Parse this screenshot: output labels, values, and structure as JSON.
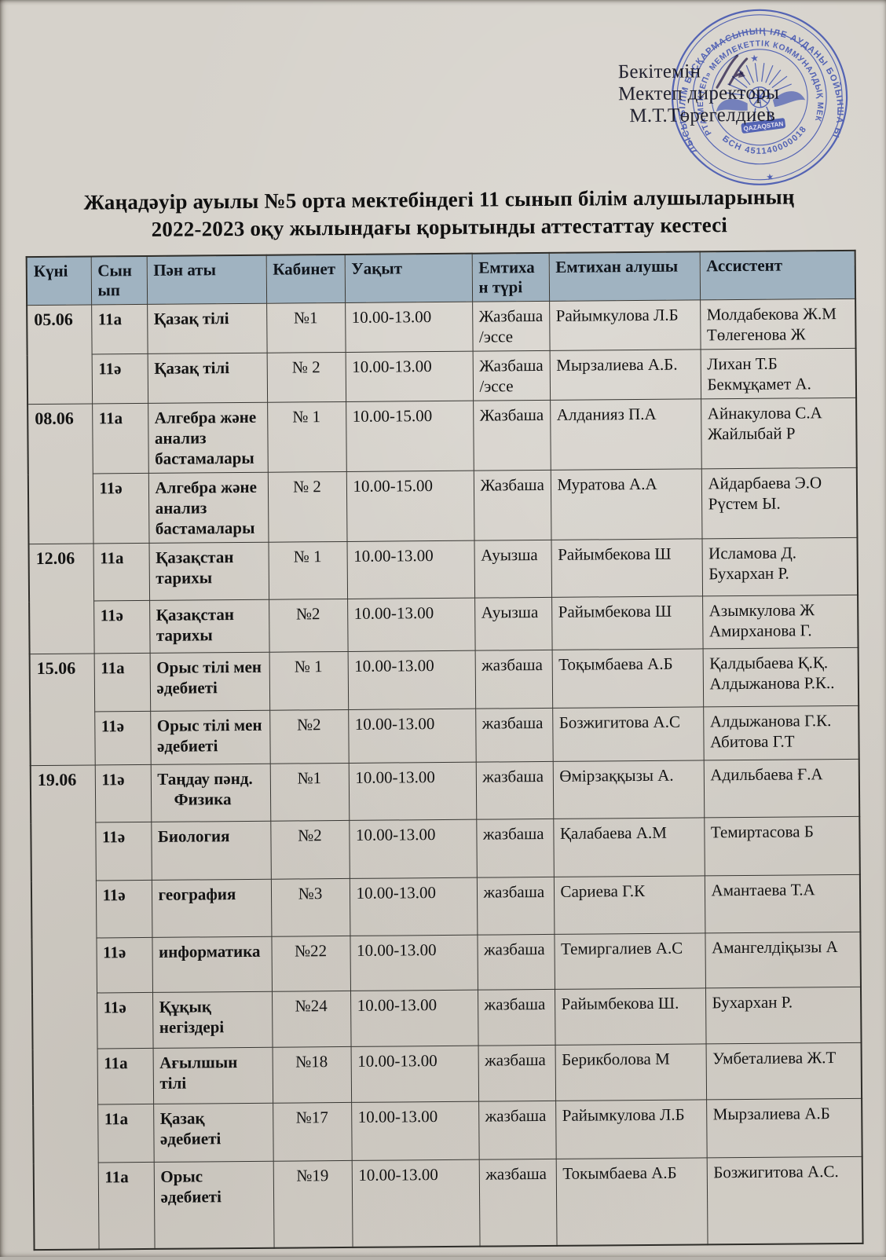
{
  "page": {
    "approval": {
      "line1": "Бекітемін",
      "line2": "Мектеп директоры",
      "line3": "М.Т.Төрегелдиев"
    },
    "title": {
      "line1": "Жаңадәуір ауылы  №5 орта мектебіндегі  11 сынып білім алушыларының",
      "line2": "2022-2023  оқу  жылындағы  қорытынды аттестаттау кестесі"
    },
    "stamp": {
      "outer_ring_text": "АЛМАТЫ ОБЛЫСЫ БІЛІМ БАСҚАРМАСЫНЫҢ ІЛЕ АУДАНЫ БОЙЫНША БІЛІМ БӨЛІМІ",
      "inner_ring_text": "«№5 ОРТА МЕКТЕП» МЕМЛЕКЕТТІК КОММУНАЛДЫҚ МЕКЕМЕСІ",
      "bsn_text": "БСН 451140000018",
      "center_text": "QAZAQSTAN"
    },
    "colors": {
      "paper": "#d6d2cb",
      "header_bg": "#a0b3c1",
      "ink": "#161616",
      "stamp_blue": "#4053b0"
    }
  },
  "table": {
    "headers": [
      "Күні",
      "Сынып",
      "Пән аты",
      "Кабинет",
      "Уақыт",
      "Емтихан түрі",
      "Емтихан алушы",
      "Ассистент"
    ],
    "rows": [
      {
        "date": "05.06",
        "date_rowspan": 2,
        "grade": "11а",
        "subject": "Қазақ тілі",
        "room": "№1",
        "time": "10.00-13.00",
        "type": "Жазбаша\n/эссе",
        "examiner": "Райымкулова Л.Б",
        "assistant": "Молдабекова Ж.М\nТөлегенова Ж"
      },
      {
        "grade": "11ә",
        "subject": "Қазақ тілі",
        "room": "№ 2",
        "time": "10.00-13.00",
        "type": "Жазбаша\n/эссе",
        "examiner": "Мырзалиева А.Б.",
        "assistant": "Лихан Т.Б\nБекмұқамет А."
      },
      {
        "date": "08.06",
        "date_rowspan": 2,
        "grade": "11а",
        "subject": "Алгебра және анализ бастамалары",
        "room": "№ 1",
        "time": "10.00-15.00",
        "type": "Жазбаша",
        "examiner": "Алданияз П.А",
        "assistant": "Айнакулова С.А\nЖайлыбай Р"
      },
      {
        "grade": "11ә",
        "subject": "Алгебра және анализ бастамалары",
        "room": "№ 2",
        "time": "10.00-15.00",
        "type": "Жазбаша",
        "examiner": "Муратова А.А",
        "assistant": "Айдарбаева Э.О\nРүстем Ы."
      },
      {
        "date": "12.06",
        "date_rowspan": 2,
        "grade": "11а",
        "subject": "Қазақстан тарихы",
        "room": "№ 1",
        "time": "10.00-13.00",
        "type": "Ауызша",
        "examiner": "Райымбекова Ш",
        "assistant": "Исламова Д.\nБухархан Р."
      },
      {
        "grade": "11ә",
        "subject": "Қазақстан тарихы",
        "room": "№2",
        "time": "10.00-13.00",
        "type": "Ауызша",
        "examiner": "Райымбекова Ш",
        "assistant": "Азымкулова Ж\nАмирханова Г."
      },
      {
        "date": "15.06",
        "date_rowspan": 2,
        "grade": "11а",
        "subject": "Орыс тілі мен әдебиеті",
        "room": "№ 1",
        "time": "10.00-13.00",
        "type": "жазбаша",
        "examiner": "Тоқымбаева А.Б",
        "assistant": "Қалдыбаева Қ.Қ.\nАлдыжанова Р.К.."
      },
      {
        "grade": "11ә",
        "subject": "Орыс тілі мен әдебиеті",
        "room": "№2",
        "time": "10.00-13.00",
        "type": "жазбаша",
        "examiner": "Бозжигитова А.С",
        "assistant": "Алдыжанова Г.К.\nАбитова Г.Т"
      },
      {
        "date": "19.06",
        "date_rowspan": 8,
        "grade": "11ә",
        "subject": "Таңдау пәнд.\n    Физика",
        "room": "№1",
        "time": "10.00-13.00",
        "type": "жазбаша",
        "examiner": "Өмірзаққызы А.",
        "assistant": "Адильбаева Ғ.А"
      },
      {
        "grade": "11ә",
        "subject": "Биология",
        "room": "№2",
        "time": "10.00-13.00",
        "type": "жазбаша",
        "examiner": "Қалабаева А.М",
        "assistant": "Темиртасова Б"
      },
      {
        "grade": "11ә",
        "subject": "география",
        "room": "№3",
        "time": "10.00-13.00",
        "type": "жазбаша",
        "examiner": "Сариева Г.К",
        "assistant": "Амантаева Т.А"
      },
      {
        "grade": "11ә",
        "subject": "информатика",
        "room": "№22",
        "time": "10.00-13.00",
        "type": "жазбаша",
        "examiner": "Темиргалиев А.С",
        "assistant": "Амангелдіқызы А"
      },
      {
        "grade": "11ә",
        "subject": "Құқық негіздері",
        "room": "№24",
        "time": "10.00-13.00",
        "type": "жазбаша",
        "examiner": "Райымбекова Ш.",
        "assistant": "Бухархан Р."
      },
      {
        "grade": "11а",
        "subject": "Ағылшын тілі",
        "room": "№18",
        "time": "10.00-13.00",
        "type": "жазбаша",
        "examiner": "Берикболова М",
        "assistant": "Умбеталиева Ж.Т"
      },
      {
        "grade": "11а",
        "subject": "Қазақ әдебиеті",
        "room": "№17",
        "time": "10.00-13.00",
        "type": "жазбаша",
        "examiner": "Райымкулова Л.Б",
        "assistant": "Мырзалиева А.Б"
      },
      {
        "grade": "11а",
        "subject": "Орыс әдебиеті",
        "room": "№19",
        "time": "10.00-13.00",
        "type": "жазбаша",
        "examiner": "Токымбаева А.Б",
        "assistant": "Бозжигитова А.С."
      }
    ]
  }
}
